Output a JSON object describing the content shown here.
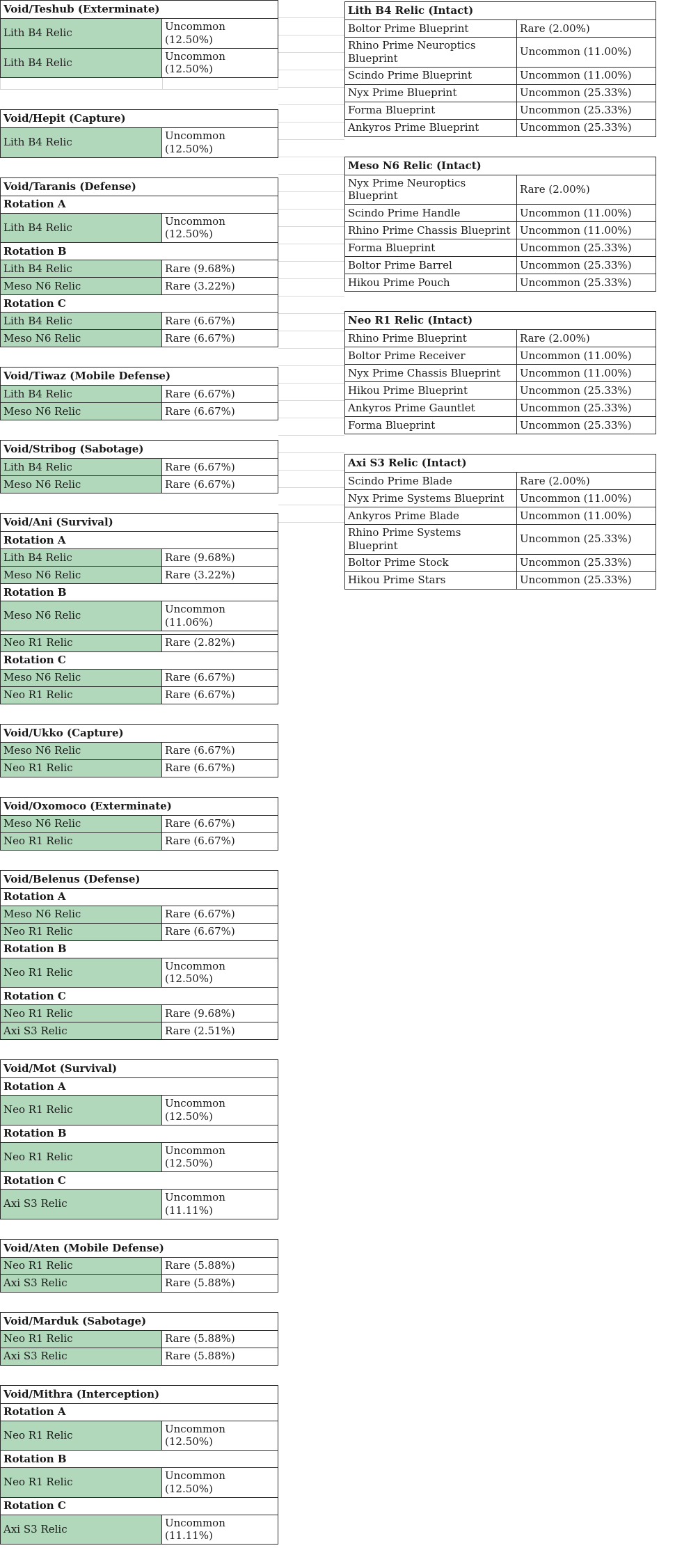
{
  "colors": {
    "relic_cell_green": "#b2d8bc",
    "table_border": "#2a2a2a",
    "faint_grid": "#d9d9d9",
    "text": "#1a1a1a",
    "background": "#ffffff"
  },
  "missions": [
    {
      "title": "Void/Teshub (Exterminate)",
      "empty_row_after": true,
      "rows": [
        {
          "t": "item",
          "name": "Lith B4 Relic",
          "chance": "Uncommon (12.50%)"
        },
        {
          "t": "item",
          "name": "Lith B4 Relic",
          "chance": "Uncommon (12.50%)"
        }
      ]
    },
    {
      "title": "Void/Hepit (Capture)",
      "rows": [
        {
          "t": "item",
          "name": "Lith B4 Relic",
          "chance": "Uncommon (12.50%)"
        }
      ]
    },
    {
      "title": "Void/Taranis (Defense)",
      "rows": [
        {
          "t": "rot",
          "label": "Rotation A"
        },
        {
          "t": "item",
          "name": "Lith B4 Relic",
          "chance": "Uncommon (12.50%)"
        },
        {
          "t": "rot",
          "label": "Rotation B"
        },
        {
          "t": "item",
          "name": "Lith B4 Relic",
          "chance": "Rare (9.68%)"
        },
        {
          "t": "item",
          "name": "Meso N6 Relic",
          "chance": "Rare (3.22%)"
        },
        {
          "t": "rot",
          "label": "Rotation C"
        },
        {
          "t": "item",
          "name": "Lith B4 Relic",
          "chance": "Rare (6.67%)"
        },
        {
          "t": "item",
          "name": "Meso N6 Relic",
          "chance": "Rare (6.67%)"
        }
      ]
    },
    {
      "title": "Void/Tiwaz (Mobile Defense)",
      "rows": [
        {
          "t": "item",
          "name": "Lith B4 Relic",
          "chance": "Rare (6.67%)"
        },
        {
          "t": "item",
          "name": "Meso N6 Relic",
          "chance": "Rare (6.67%)"
        }
      ]
    },
    {
      "title": "Void/Stribog (Sabotage)",
      "rows": [
        {
          "t": "item",
          "name": "Lith B4 Relic",
          "chance": "Rare (6.67%)"
        },
        {
          "t": "item",
          "name": "Meso N6 Relic",
          "chance": "Rare (6.67%)"
        }
      ]
    },
    {
      "title": "Void/Ani (Survival)",
      "rows": [
        {
          "t": "rot",
          "label": "Rotation A"
        },
        {
          "t": "item",
          "name": "Lith B4 Relic",
          "chance": "Rare (9.68%)"
        },
        {
          "t": "item",
          "name": "Meso N6 Relic",
          "chance": "Rare (3.22%)"
        },
        {
          "t": "rot",
          "label": "Rotation B"
        },
        {
          "t": "item",
          "name": "Meso N6 Relic",
          "chance": "Uncommon (11.06%)"
        },
        {
          "t": "item",
          "name": "Neo R1 Relic",
          "chance": "Rare (2.82%)",
          "split": true
        },
        {
          "t": "rot",
          "label": "Rotation C"
        },
        {
          "t": "item",
          "name": "Meso N6 Relic",
          "chance": "Rare (6.67%)"
        },
        {
          "t": "item",
          "name": "Neo R1 Relic",
          "chance": "Rare (6.67%)"
        }
      ]
    },
    {
      "title": "Void/Ukko (Capture)",
      "rows": [
        {
          "t": "item",
          "name": "Meso N6 Relic",
          "chance": "Rare (6.67%)"
        },
        {
          "t": "item",
          "name": "Neo R1 Relic",
          "chance": "Rare (6.67%)"
        }
      ]
    },
    {
      "title": "Void/Oxomoco (Exterminate)",
      "rows": [
        {
          "t": "item",
          "name": "Meso N6 Relic",
          "chance": "Rare (6.67%)"
        },
        {
          "t": "item",
          "name": "Neo R1 Relic",
          "chance": "Rare (6.67%)"
        }
      ]
    },
    {
      "title": "Void/Belenus (Defense)",
      "rows": [
        {
          "t": "rot",
          "label": "Rotation A"
        },
        {
          "t": "item",
          "name": "Meso N6 Relic",
          "chance": "Rare (6.67%)"
        },
        {
          "t": "item",
          "name": "Neo R1 Relic",
          "chance": "Rare (6.67%)"
        },
        {
          "t": "rot",
          "label": "Rotation B"
        },
        {
          "t": "item",
          "name": "Neo R1 Relic",
          "chance": "Uncommon (12.50%)"
        },
        {
          "t": "rot",
          "label": "Rotation C"
        },
        {
          "t": "item",
          "name": "Neo R1 Relic",
          "chance": "Rare (9.68%)"
        },
        {
          "t": "item",
          "name": "Axi S3 Relic",
          "chance": "Rare (2.51%)"
        }
      ]
    },
    {
      "title": "Void/Mot (Survival)",
      "rows": [
        {
          "t": "rot",
          "label": "Rotation A"
        },
        {
          "t": "item",
          "name": "Neo R1 Relic",
          "chance": "Uncommon (12.50%)"
        },
        {
          "t": "rot",
          "label": "Rotation B"
        },
        {
          "t": "item",
          "name": "Neo R1 Relic",
          "chance": "Uncommon (12.50%)"
        },
        {
          "t": "rot",
          "label": "Rotation C"
        },
        {
          "t": "item",
          "name": "Axi S3 Relic",
          "chance": "Uncommon (11.11%)"
        }
      ]
    },
    {
      "title": "Void/Aten (Mobile Defense)",
      "rows": [
        {
          "t": "item",
          "name": "Neo R1 Relic",
          "chance": "Rare (5.88%)"
        },
        {
          "t": "item",
          "name": "Axi S3 Relic",
          "chance": "Rare (5.88%)"
        }
      ]
    },
    {
      "title": "Void/Marduk (Sabotage)",
      "rows": [
        {
          "t": "item",
          "name": "Neo R1 Relic",
          "chance": "Rare (5.88%)"
        },
        {
          "t": "item",
          "name": "Axi S3 Relic",
          "chance": "Rare (5.88%)"
        }
      ]
    },
    {
      "title": "Void/Mithra (Interception)",
      "rows": [
        {
          "t": "rot",
          "label": "Rotation A"
        },
        {
          "t": "item",
          "name": "Neo R1 Relic",
          "chance": "Uncommon (12.50%)"
        },
        {
          "t": "rot",
          "label": "Rotation B"
        },
        {
          "t": "item",
          "name": "Neo R1 Relic",
          "chance": "Uncommon (12.50%)"
        },
        {
          "t": "rot",
          "label": "Rotation C"
        },
        {
          "t": "item",
          "name": "Axi S3 Relic",
          "chance": "Uncommon (11.11%)"
        }
      ]
    }
  ],
  "relics": [
    {
      "title": "Lith B4 Relic (Intact)",
      "rows": [
        {
          "t": "item",
          "name": "Boltor Prime Blueprint",
          "chance": "Rare (2.00%)"
        },
        {
          "t": "item",
          "name": "Rhino Prime Neuroptics Blueprint",
          "chance": "Uncommon (11.00%)"
        },
        {
          "t": "item",
          "name": "Scindo Prime Blueprint",
          "chance": "Uncommon (11.00%)"
        },
        {
          "t": "item",
          "name": "Nyx Prime Blueprint",
          "chance": "Uncommon (25.33%)"
        },
        {
          "t": "item",
          "name": "Forma Blueprint",
          "chance": "Uncommon (25.33%)"
        },
        {
          "t": "item",
          "name": "Ankyros Prime Blueprint",
          "chance": "Uncommon (25.33%)"
        }
      ]
    },
    {
      "title": "Meso N6 Relic (Intact)",
      "rows": [
        {
          "t": "item",
          "name": "Nyx Prime Neuroptics Blueprint",
          "chance": "Rare (2.00%)"
        },
        {
          "t": "item",
          "name": "Scindo Prime Handle",
          "chance": "Uncommon (11.00%)"
        },
        {
          "t": "item",
          "name": "Rhino Prime Chassis Blueprint",
          "chance": "Uncommon (11.00%)"
        },
        {
          "t": "item",
          "name": "Forma Blueprint",
          "chance": "Uncommon (25.33%)"
        },
        {
          "t": "item",
          "name": "Boltor Prime Barrel",
          "chance": "Uncommon (25.33%)"
        },
        {
          "t": "item",
          "name": "Hikou Prime Pouch",
          "chance": "Uncommon (25.33%)"
        }
      ]
    },
    {
      "title": "Neo R1 Relic (Intact)",
      "rows": [
        {
          "t": "item",
          "name": "Rhino Prime Blueprint",
          "chance": "Rare (2.00%)"
        },
        {
          "t": "item",
          "name": "Boltor Prime Receiver",
          "chance": "Uncommon (11.00%)"
        },
        {
          "t": "item",
          "name": "Nyx Prime Chassis Blueprint",
          "chance": "Uncommon (11.00%)"
        },
        {
          "t": "item",
          "name": "Hikou Prime Blueprint",
          "chance": "Uncommon (25.33%)"
        },
        {
          "t": "item",
          "name": "Ankyros Prime Gauntlet",
          "chance": "Uncommon (25.33%)"
        },
        {
          "t": "item",
          "name": "Forma Blueprint",
          "chance": "Uncommon (25.33%)"
        }
      ]
    },
    {
      "title": "Axi S3 Relic (Intact)",
      "rows": [
        {
          "t": "item",
          "name": "Scindo Prime Blade",
          "chance": "Rare (2.00%)"
        },
        {
          "t": "item",
          "name": "Nyx Prime Systems Blueprint",
          "chance": "Uncommon (11.00%)"
        },
        {
          "t": "item",
          "name": "Ankyros Prime Blade",
          "chance": "Uncommon (11.00%)"
        },
        {
          "t": "item",
          "name": "Rhino Prime Systems Blueprint",
          "chance": "Uncommon (25.33%)"
        },
        {
          "t": "item",
          "name": "Boltor Prime Stock",
          "chance": "Uncommon (25.33%)"
        },
        {
          "t": "item",
          "name": "Hikou Prime Stars",
          "chance": "Uncommon (25.33%)"
        }
      ]
    }
  ]
}
